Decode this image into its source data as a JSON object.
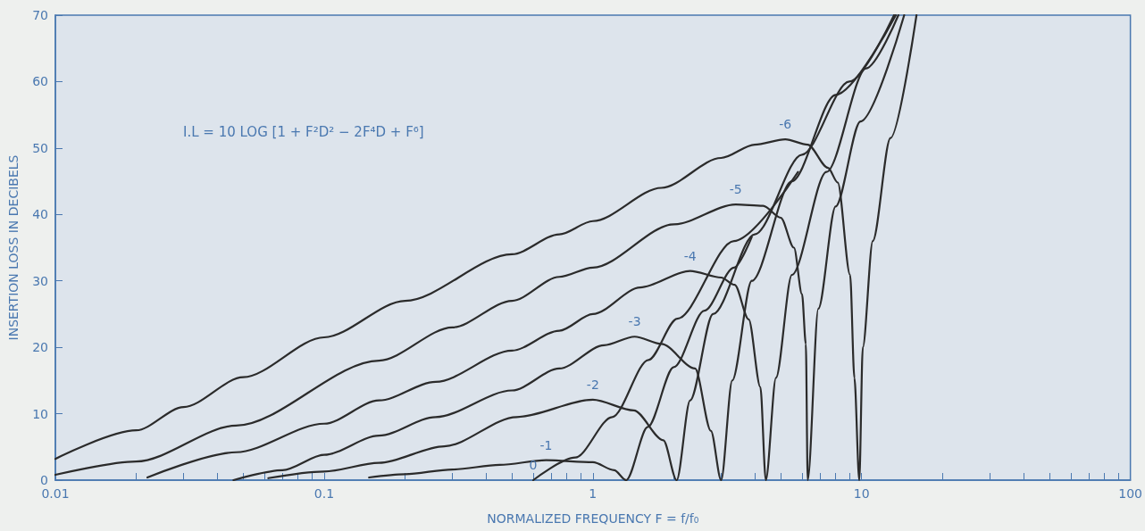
{
  "chart_data": {
    "type": "line",
    "xlabel": "NORMALIZED FREQUENCY F = f/f₀",
    "ylabel": "INSERTION LOSS IN DECIBELS",
    "annotations": [
      "I.L = 10 LOG [1 + F²D² − 2F⁴D + F⁶]"
    ],
    "log": "x",
    "grid": false,
    "legend": false,
    "marker": "none",
    "line_style": "solid",
    "xlim": [
      0.01,
      100
    ],
    "ylim": [
      0,
      70
    ],
    "xticks": [
      {
        "value": 0.01,
        "label": "0.01"
      },
      {
        "value": 0.02,
        "label": null
      },
      {
        "value": 0.03,
        "label": null
      },
      {
        "value": 0.04,
        "label": null
      },
      {
        "value": 0.05,
        "label": null
      },
      {
        "value": 0.06,
        "label": null
      },
      {
        "value": 0.07,
        "label": null
      },
      {
        "value": 0.08,
        "label": null
      },
      {
        "value": 0.09,
        "label": null
      },
      {
        "value": 0.1,
        "label": "0.1"
      },
      {
        "value": 0.2,
        "label": null
      },
      {
        "value": 0.3,
        "label": null
      },
      {
        "value": 0.4,
        "label": null
      },
      {
        "value": 0.5,
        "label": null
      },
      {
        "value": 0.6,
        "label": null
      },
      {
        "value": 0.7,
        "label": null
      },
      {
        "value": 0.8,
        "label": null
      },
      {
        "value": 0.9,
        "label": null
      },
      1,
      {
        "value": 2,
        "label": null
      },
      {
        "value": 3,
        "label": null
      },
      {
        "value": 4,
        "label": null
      },
      {
        "value": 5,
        "label": null
      },
      {
        "value": 6,
        "label": null
      },
      {
        "value": 7,
        "label": null
      },
      {
        "value": 8,
        "label": null
      },
      {
        "value": 9,
        "label": null
      },
      10,
      {
        "value": 20,
        "label": null
      },
      {
        "value": 30,
        "label": null
      },
      {
        "value": 40,
        "label": null
      },
      {
        "value": 50,
        "label": null
      },
      {
        "value": 60,
        "label": null
      },
      {
        "value": 70,
        "label": null
      },
      {
        "value": 80,
        "label": null
      },
      {
        "value": 90,
        "label": null
      },
      100
    ],
    "yticks": [
      0,
      10,
      20,
      30,
      40,
      50,
      60,
      70
    ],
    "series": [
      {
        "name": "-6",
        "color": "#2b2b2b",
        "x": [
          0.01,
          0.02,
          0.03,
          0.05,
          0.1,
          0.2,
          0.5,
          0.75,
          1,
          1.8,
          3,
          4,
          5.2,
          6.3,
          7.5,
          8.15,
          9.06,
          9.4,
          9.8,
          10.1,
          11,
          12.8,
          16
        ],
        "values": [
          3.2,
          7.5,
          11,
          15.5,
          21.5,
          27,
          34,
          37,
          39,
          44,
          48.5,
          50.5,
          51.3,
          50.5,
          47,
          44.8,
          30.9,
          15.4,
          0,
          20,
          36,
          51.5,
          70
        ]
      },
      {
        "name": "-5",
        "color": "#2b2b2b",
        "x": [
          0.01,
          0.02,
          0.047,
          0.16,
          0.3,
          0.5,
          0.75,
          1,
          2,
          3.4,
          4.3,
          5,
          5.6,
          6,
          6.2,
          6.3,
          6.9,
          8,
          9.9,
          14.4
        ],
        "values": [
          0.8,
          2.8,
          8.2,
          18,
          23,
          27,
          30.6,
          32,
          38.5,
          41.5,
          41.3,
          39.5,
          35,
          28,
          20.5,
          0,
          25.8,
          41.2,
          54,
          70
        ]
      },
      {
        "name": "-4",
        "color": "#2b2b2b",
        "x": [
          0.022,
          0.047,
          0.1,
          0.16,
          0.26,
          0.5,
          0.75,
          1,
          1.5,
          2.3,
          3,
          3.37,
          3.8,
          4.2,
          4.4,
          4.8,
          5.5,
          7.4,
          10.4,
          13.7
        ],
        "values": [
          0.4,
          4.2,
          8.5,
          12,
          14.8,
          19.5,
          22.5,
          25,
          29,
          31.5,
          30.5,
          29.4,
          24.2,
          14,
          0,
          15.4,
          30.9,
          46.4,
          62,
          70
        ]
      },
      {
        "name": "-3",
        "color": "#2b2b2b",
        "x": [
          0.046,
          0.07,
          0.1,
          0.16,
          0.26,
          0.5,
          0.75,
          1.1,
          1.43,
          1.8,
          2.4,
          2.75,
          3,
          3.3,
          3.9,
          5.5,
          8,
          13.4
        ],
        "values": [
          0,
          1.5,
          3.8,
          6.7,
          9.5,
          13.5,
          16.8,
          20.3,
          21.6,
          20.5,
          16.8,
          7.4,
          0,
          15,
          30,
          45,
          58,
          70
        ]
      },
      {
        "name": "-2",
        "color": "#2b2b2b",
        "x": [
          0.062,
          0.1,
          0.16,
          0.28,
          0.52,
          1,
          1.42,
          1.83,
          2.05,
          2.3,
          2.8,
          4,
          6,
          9,
          13.2
        ],
        "values": [
          0.3,
          1.3,
          2.6,
          5.1,
          9.5,
          12.1,
          10.5,
          6,
          0,
          12,
          25,
          37,
          49,
          60,
          70
        ]
      },
      {
        "name": "-1",
        "color": "#2b2b2b",
        "x": [
          0.147,
          0.2,
          0.3,
          0.45,
          0.67,
          1,
          1.2,
          1.33,
          1.6,
          2,
          2.6,
          3.35,
          3.9
        ],
        "values": [
          0.4,
          0.9,
          1.6,
          2.3,
          3,
          2.7,
          1.5,
          0,
          8,
          17,
          25.5,
          32,
          36.6
        ]
      },
      {
        "name": "0",
        "color": "#2b2b2b",
        "x": [
          0.6,
          0.86,
          1.18,
          1.61,
          2.06,
          3.35,
          5.8
        ],
        "values": [
          0,
          3.4,
          9.5,
          18.1,
          24.3,
          36,
          46.4
        ]
      }
    ]
  }
}
